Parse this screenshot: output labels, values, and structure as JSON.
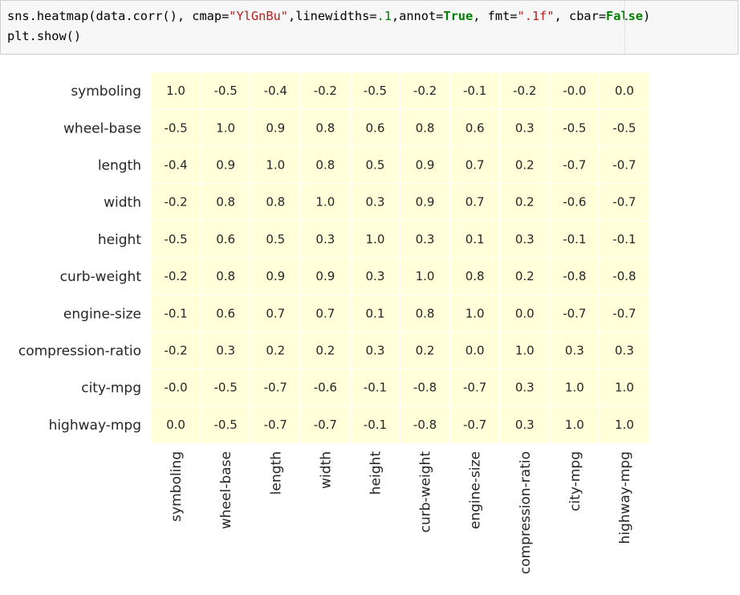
{
  "code_cell": {
    "line1_tokens": [
      {
        "t": "sns.heatmap(data.corr(), cmap=",
        "c": ""
      },
      {
        "t": "\"YlGnBu\"",
        "c": "str"
      },
      {
        "t": ",linewidths=",
        "c": ""
      },
      {
        "t": ".1",
        "c": "num"
      },
      {
        "t": ",annot=",
        "c": ""
      },
      {
        "t": "True",
        "c": "kw"
      },
      {
        "t": ", fmt=",
        "c": ""
      },
      {
        "t": "\".1f\"",
        "c": "str"
      },
      {
        "t": ", cbar=",
        "c": ""
      },
      {
        "t": "False",
        "c": "kw"
      },
      {
        "t": ")",
        "c": ""
      }
    ],
    "line2": "plt.show()"
  },
  "chart_data": {
    "type": "heatmap",
    "colormap": "YlGnBu",
    "annot_format": ".1f",
    "vmin": -0.8,
    "vmax": 1.0,
    "colorbar": false,
    "rows": [
      "symboling",
      "wheel-base",
      "length",
      "width",
      "height",
      "curb-weight",
      "engine-size",
      "compression-ratio",
      "city-mpg",
      "highway-mpg"
    ],
    "cols": [
      "symboling",
      "wheel-base",
      "length",
      "width",
      "height",
      "curb-weight",
      "engine-size",
      "compression-ratio",
      "city-mpg",
      "highway-mpg"
    ],
    "values": [
      [
        1.0,
        -0.53,
        -0.36,
        -0.24,
        -0.54,
        -0.23,
        -0.11,
        -0.18,
        -0.04,
        0.04
      ],
      [
        -0.53,
        1.0,
        0.88,
        0.81,
        0.59,
        0.78,
        0.57,
        0.25,
        -0.47,
        -0.54
      ],
      [
        -0.36,
        0.88,
        1.0,
        0.84,
        0.49,
        0.88,
        0.68,
        0.16,
        -0.67,
        -0.7
      ],
      [
        -0.24,
        0.81,
        0.84,
        1.0,
        0.28,
        0.87,
        0.73,
        0.19,
        -0.63,
        -0.68
      ],
      [
        -0.54,
        0.59,
        0.49,
        0.28,
        1.0,
        0.3,
        0.07,
        0.26,
        -0.05,
        -0.11
      ],
      [
        -0.23,
        0.78,
        0.88,
        0.87,
        0.3,
        1.0,
        0.85,
        0.16,
        -0.75,
        -0.79
      ],
      [
        -0.11,
        0.57,
        0.68,
        0.73,
        0.07,
        0.85,
        1.0,
        0.03,
        -0.65,
        -0.68
      ],
      [
        -0.18,
        0.25,
        0.16,
        0.19,
        0.26,
        0.16,
        0.03,
        1.0,
        0.32,
        0.27
      ],
      [
        -0.04,
        -0.47,
        -0.67,
        -0.63,
        -0.05,
        -0.75,
        -0.65,
        0.32,
        1.0,
        0.97
      ],
      [
        0.04,
        -0.54,
        -0.7,
        -0.68,
        -0.11,
        -0.79,
        -0.68,
        0.27,
        0.97,
        1.0
      ]
    ]
  }
}
